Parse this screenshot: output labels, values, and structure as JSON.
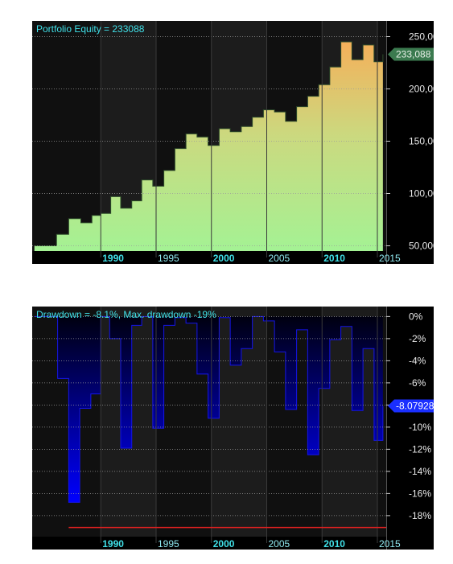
{
  "chart_data": [
    {
      "type": "area",
      "title": "Portfolio Equity = 233088",
      "last_value_label": "233,088",
      "ylim": [
        45000,
        265000
      ],
      "yticks": [
        50000,
        100000,
        150000,
        200000,
        250000
      ],
      "ytick_labels": [
        "50,000",
        "100,000",
        "150,000",
        "200,000",
        "250,000"
      ],
      "xlim": [
        1983.8,
        2015.8
      ],
      "xticks": [
        1990,
        1995,
        2000,
        2005,
        2010,
        2015
      ],
      "xtick_labels": [
        "1990",
        "1995",
        "2000",
        "2005",
        "2010",
        "2015"
      ],
      "major_xticks": [
        1990,
        2000,
        2010
      ],
      "grid": true,
      "gradient_colors": [
        "#a4f294",
        "#cbd97f",
        "#f5b05a"
      ],
      "badge_color": "#3b7a4f",
      "x": [
        1984.0,
        1985.0,
        1986.0,
        1987.1,
        1988.2,
        1989.2,
        1990.0,
        1990.9,
        1991.8,
        1992.8,
        1993.7,
        1994.7,
        1995.7,
        1996.7,
        1997.7,
        1998.7,
        1999.7,
        2000.7,
        2001.7,
        2002.7,
        2003.7,
        2004.7,
        2005.7,
        2006.7,
        2007.7,
        2008.7,
        2009.7,
        2010.7,
        2011.7,
        2012.7,
        2013.7,
        2014.7,
        2015.5
      ],
      "y": [
        50000,
        50000,
        61000,
        76000,
        72000,
        79000,
        81000,
        97000,
        86000,
        93000,
        113000,
        107000,
        122000,
        143000,
        157000,
        154000,
        146000,
        162000,
        159000,
        164000,
        173000,
        180000,
        178000,
        169000,
        183000,
        193000,
        204000,
        221000,
        245000,
        228000,
        242000,
        226000,
        233088
      ]
    },
    {
      "type": "area",
      "title": "Drawdown = -8.1%, Max. drawdown -19%",
      "last_value_label": "-8.07928",
      "max_drawdown": -19,
      "ylim": [
        -19.9,
        0.9
      ],
      "yticks": [
        0,
        -2,
        -4,
        -6,
        -8,
        -10,
        -12,
        -14,
        -16,
        -18
      ],
      "ytick_labels": [
        "0%",
        "-2%",
        "-4%",
        "-6%",
        "-8%",
        "-10%",
        "-12%",
        "-14%",
        "-16%",
        "-18%"
      ],
      "xlim": [
        1983.8,
        2015.8
      ],
      "xticks": [
        1990,
        1995,
        2000,
        2005,
        2010,
        2015
      ],
      "xtick_labels": [
        "1990",
        "1995",
        "2000",
        "2005",
        "2010",
        "2015"
      ],
      "major_xticks": [
        1990,
        2000,
        2010
      ],
      "grid": true,
      "gradient_colors": [
        "#000010",
        "#0000ff"
      ],
      "badge_color": "#1a2fff",
      "x": [
        1984.0,
        1985.1,
        1986.1,
        1987.1,
        1988.1,
        1989.1,
        1990.0,
        1990.8,
        1991.8,
        1992.8,
        1993.7,
        1994.7,
        1995.7,
        1996.7,
        1997.7,
        1998.7,
        1999.7,
        2000.7,
        2001.7,
        2002.7,
        2003.7,
        2004.7,
        2005.7,
        2006.7,
        2007.7,
        2008.7,
        2009.7,
        2010.7,
        2011.7,
        2012.7,
        2013.7,
        2014.7,
        2015.5
      ],
      "y": [
        0,
        0,
        -5.6,
        -16.8,
        -8.3,
        -7.0,
        0,
        -2.0,
        -11.9,
        -0.8,
        0,
        -10.1,
        -0.8,
        -0.1,
        -0.6,
        -5.2,
        -9.2,
        -0.1,
        -4.4,
        -2.9,
        0,
        -0.4,
        -3.2,
        -8.4,
        -1.2,
        -12.5,
        -6.5,
        -2.1,
        -0.9,
        -8.5,
        -2.9,
        -11.2,
        -8.07928
      ]
    }
  ]
}
